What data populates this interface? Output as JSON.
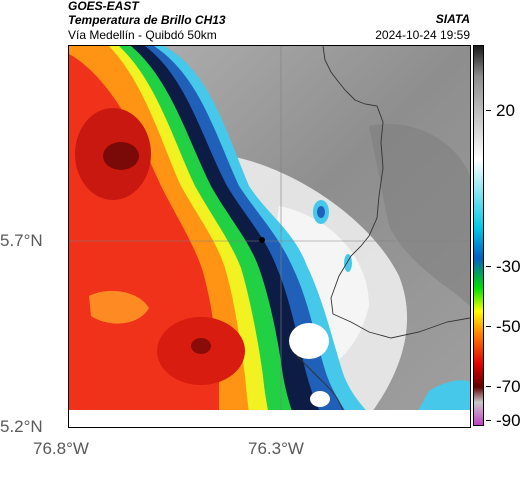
{
  "header": {
    "source": "GOES-EAST",
    "product": "Temperatura de Brillo CH13",
    "region": "Vía Medellín - Quibdó 50km",
    "agency": "SIATA",
    "datetime": "2024-10-24 19:59"
  },
  "axes": {
    "lat_labels": [
      "5.7°N",
      "5.2°N"
    ],
    "lon_labels": [
      "76.8°W",
      "76.3°W"
    ]
  },
  "colorbar": {
    "tick_labels": [
      "20",
      "-30",
      "-50",
      "-70",
      "-90"
    ],
    "tick_values": [
      20,
      -30,
      -50,
      -70,
      -90
    ],
    "colors": [
      "#1a1a1a",
      "#8c8c8c",
      "#ffffff",
      "#00c8e6",
      "#0060c0",
      "#00e000",
      "#ffff00",
      "#ff8000",
      "#e00000",
      "#600000",
      "#c8c8c8",
      "#c040c0"
    ]
  },
  "map": {
    "marker": "city-marker",
    "colors": {
      "cloud_light": "#f2f2f2",
      "cloud_gray": "#9a9a9a",
      "cyan": "#40c8e8",
      "blue": "#1e5ab4",
      "navy": "#0a1a40",
      "green": "#20d040",
      "yellow": "#f0f020",
      "orange": "#ff9010",
      "red": "#ee2a10",
      "dark_red": "#7a0a08",
      "border_line": "#333333"
    }
  }
}
